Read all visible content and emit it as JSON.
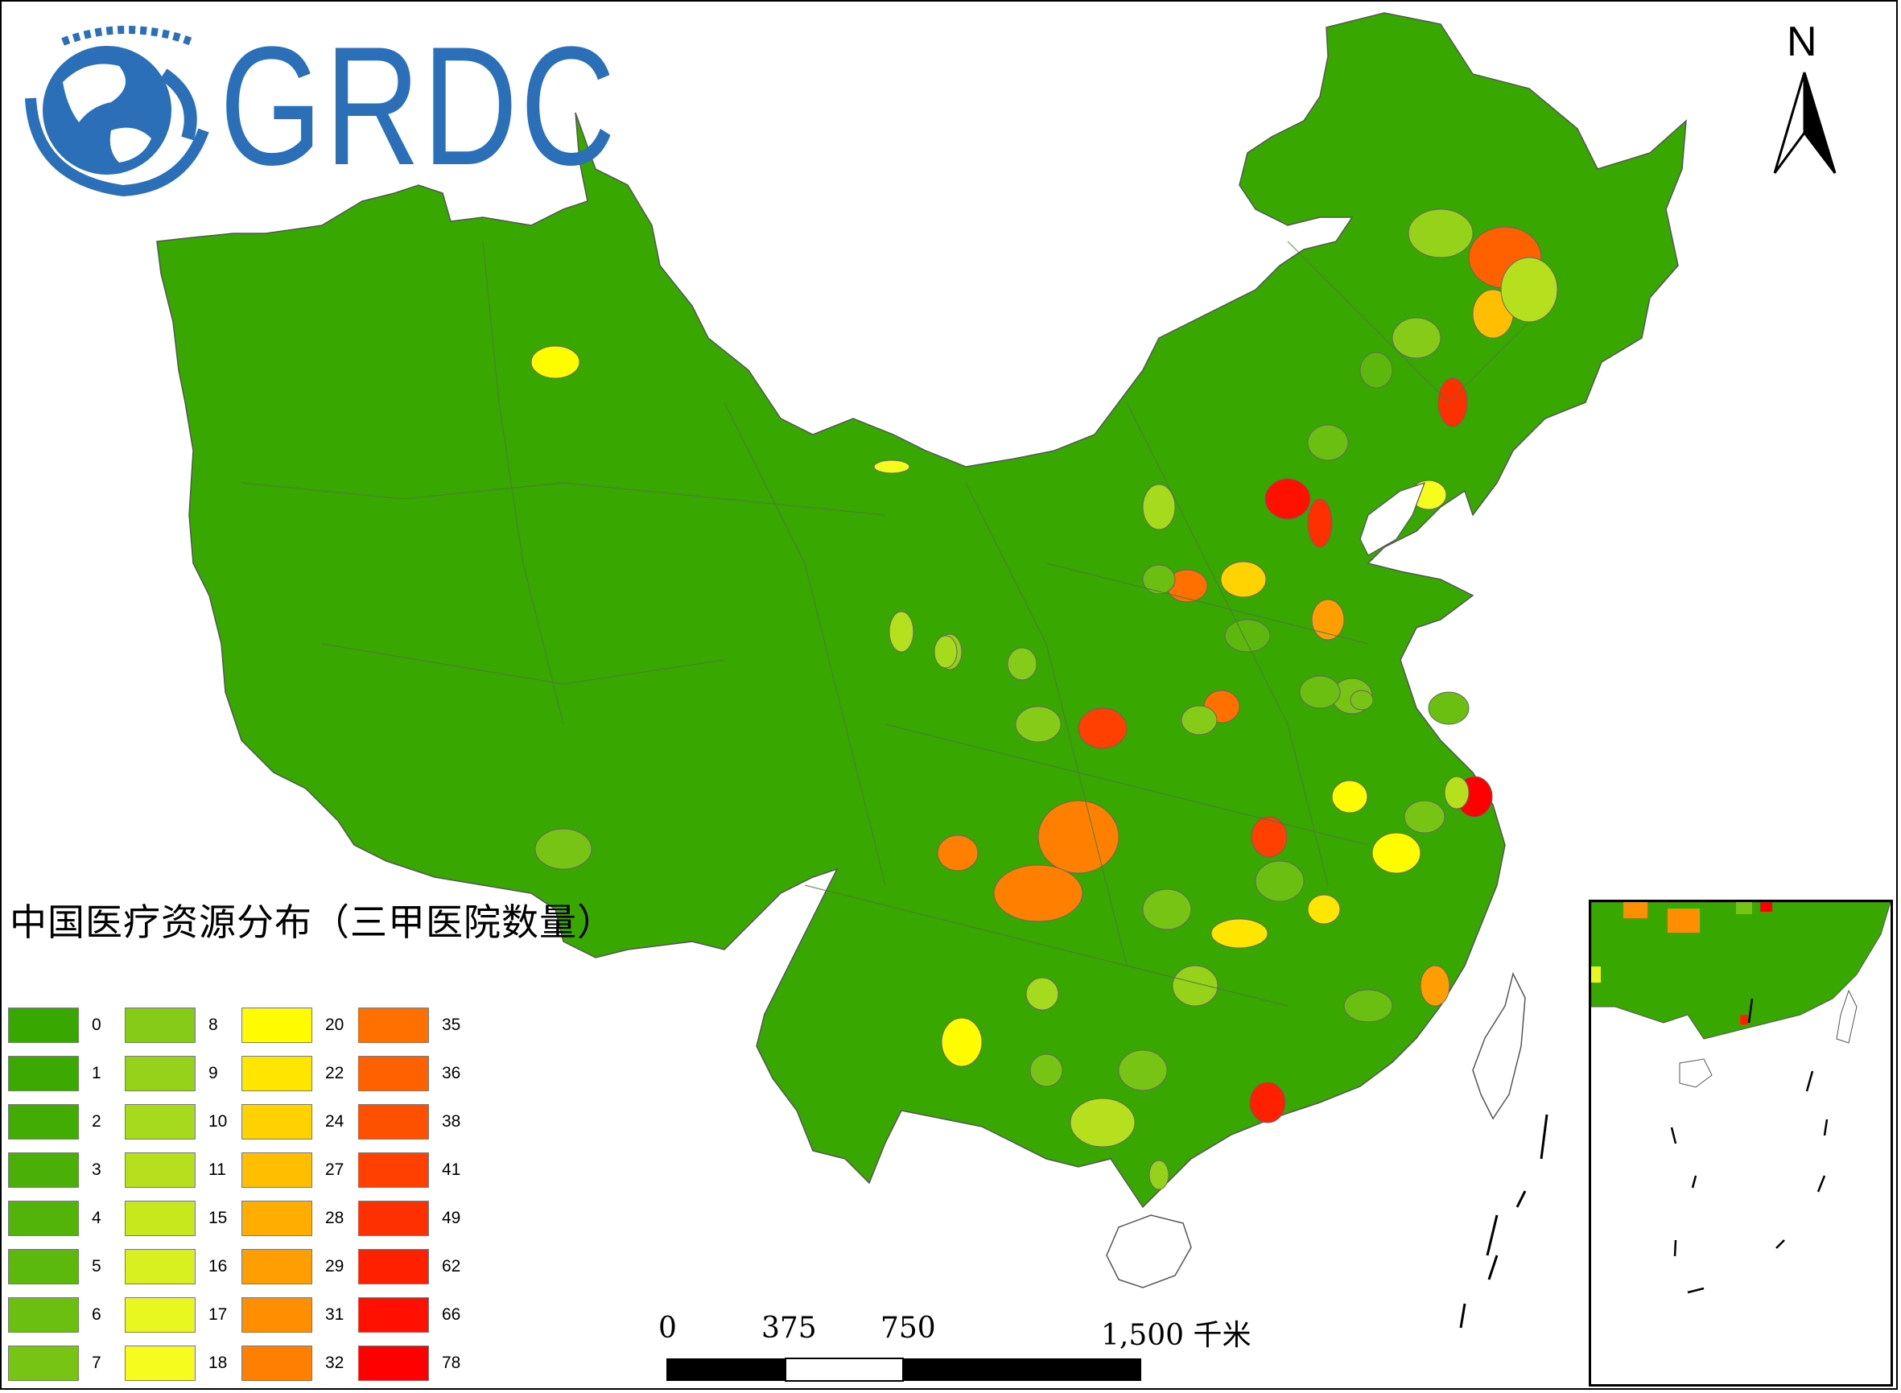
{
  "logo": {
    "text": "GRDC",
    "color": "#2a6fb8"
  },
  "map": {
    "title": "中国医疗资源分布（三甲医院数量）",
    "base_color": "#38a800"
  },
  "legend": {
    "items": [
      {
        "label": "0",
        "color": "#38a800"
      },
      {
        "label": "1",
        "color": "#3ca802"
      },
      {
        "label": "2",
        "color": "#42ac04"
      },
      {
        "label": "3",
        "color": "#4aaf07"
      },
      {
        "label": "4",
        "color": "#52b309"
      },
      {
        "label": "5",
        "color": "#5cb80c"
      },
      {
        "label": "6",
        "color": "#6abf10"
      },
      {
        "label": "7",
        "color": "#78c414"
      },
      {
        "label": "8",
        "color": "#86cb17"
      },
      {
        "label": "9",
        "color": "#96d21a"
      },
      {
        "label": "10",
        "color": "#a6da1c"
      },
      {
        "label": "11",
        "color": "#b6e01d"
      },
      {
        "label": "15",
        "color": "#c8e81e"
      },
      {
        "label": "16",
        "color": "#d8f01f"
      },
      {
        "label": "17",
        "color": "#e8f71f"
      },
      {
        "label": "18",
        "color": "#f6fc1e"
      },
      {
        "label": "20",
        "color": "#fffc00"
      },
      {
        "label": "22",
        "color": "#ffe600"
      },
      {
        "label": "24",
        "color": "#ffd200"
      },
      {
        "label": "27",
        "color": "#ffbe00"
      },
      {
        "label": "28",
        "color": "#ffae00"
      },
      {
        "label": "29",
        "color": "#ff9e00"
      },
      {
        "label": "31",
        "color": "#ff8e00"
      },
      {
        "label": "32",
        "color": "#ff8000"
      },
      {
        "label": "35",
        "color": "#ff7000"
      },
      {
        "label": "36",
        "color": "#ff6000"
      },
      {
        "label": "38",
        "color": "#ff5000"
      },
      {
        "label": "41",
        "color": "#ff4000"
      },
      {
        "label": "49",
        "color": "#ff3000"
      },
      {
        "label": "62",
        "color": "#ff2000"
      },
      {
        "label": "66",
        "color": "#ff1000"
      },
      {
        "label": "78",
        "color": "#ff0000"
      }
    ]
  },
  "scale_bar": {
    "labels": [
      "0",
      "375",
      "750",
      "1,500 千米"
    ]
  },
  "north_arrow": {
    "label": "N"
  }
}
